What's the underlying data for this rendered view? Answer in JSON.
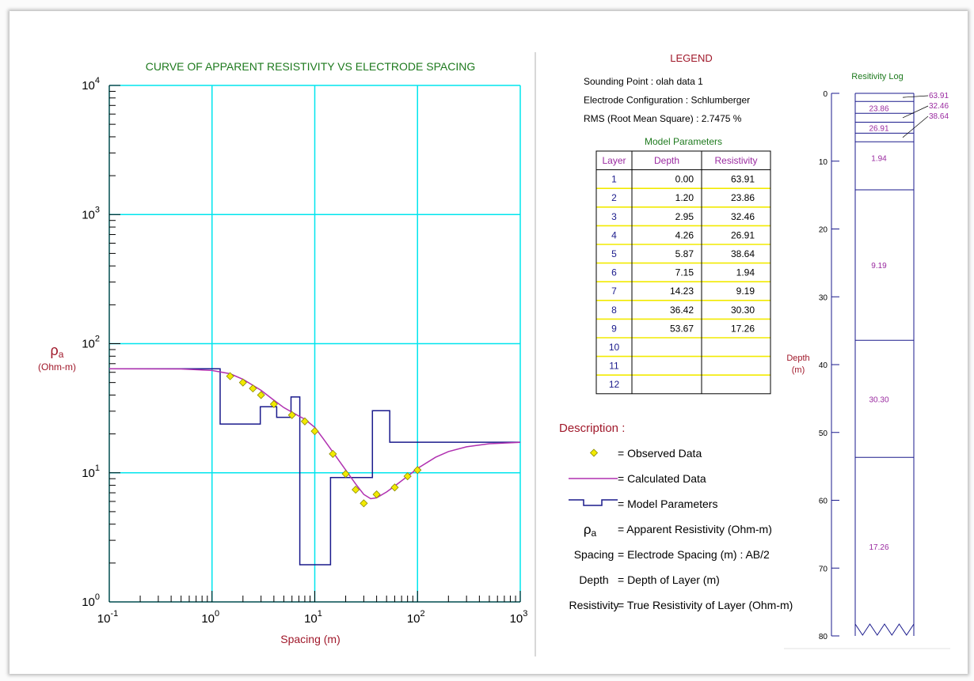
{
  "colors": {
    "grid": "#00e5ee",
    "axis": "#000000",
    "title": "#1e7a1e",
    "ylabel": "#a0182a",
    "xlabel": "#a0182a",
    "model": "#1a1a8c",
    "calc": "#b030b0",
    "observed": "#f2ea00",
    "observed_edge": "#8a8a00",
    "table_row": "#f2ea00",
    "table_text": "#1a1a8c",
    "table_header": "#9a2aa0",
    "legend_title": "#a0182a",
    "log_title": "#1e7a1e",
    "log_text": "#9a2aa0"
  },
  "chart_data": [
    {
      "type": "line",
      "title": "CURVE OF APPARENT RESISTIVITY VS ELECTRODE SPACING",
      "xlabel": "Spacing (m)",
      "ylabel_symbol": "ρ",
      "ylabel_sub": "a",
      "ylabel_unit": "(Ohm-m)",
      "xscale": "log",
      "yscale": "log",
      "xlim": [
        0.1,
        1000
      ],
      "ylim": [
        1,
        10000
      ],
      "grid": true,
      "x_ticks": [
        {
          "base": "10",
          "exp": "-1"
        },
        {
          "base": "10",
          "exp": "0"
        },
        {
          "base": "10",
          "exp": "1"
        },
        {
          "base": "10",
          "exp": "2"
        },
        {
          "base": "10",
          "exp": "3"
        }
      ],
      "y_ticks": [
        {
          "base": "10",
          "exp": "0"
        },
        {
          "base": "10",
          "exp": "1"
        },
        {
          "base": "10",
          "exp": "2"
        },
        {
          "base": "10",
          "exp": "3"
        },
        {
          "base": "10",
          "exp": "4"
        }
      ],
      "series": [
        {
          "name": "Observed Data",
          "kind": "scatter",
          "x": [
            1.5,
            2,
            2.5,
            3,
            4,
            6,
            8,
            10,
            15,
            20,
            25,
            30,
            40,
            60,
            80,
            100
          ],
          "y": [
            56,
            50,
            45,
            40,
            34,
            28,
            25,
            21,
            14,
            9.8,
            7.4,
            5.8,
            6.8,
            7.7,
            9.4,
            10.5
          ]
        },
        {
          "name": "Calculated Data",
          "kind": "line",
          "x": [
            0.1,
            0.5,
            1,
            1.5,
            2,
            3,
            4,
            5,
            6,
            7,
            8,
            10,
            12,
            15,
            20,
            25,
            30,
            35,
            40,
            50,
            60,
            80,
            100,
            150,
            200,
            300,
            500,
            1000
          ],
          "y": [
            63.9,
            63.7,
            62,
            58.5,
            53,
            43.5,
            36.5,
            32,
            29.5,
            27.5,
            26,
            22.5,
            18.5,
            14.5,
            10.5,
            8.2,
            6.8,
            6.3,
            6.4,
            7.1,
            7.9,
            9.4,
            10.8,
            13.2,
            14.6,
            15.9,
            16.8,
            17.2
          ]
        },
        {
          "name": "Model Parameters",
          "kind": "step",
          "resistivity": [
            63.91,
            23.86,
            32.46,
            26.91,
            38.64,
            1.94,
            9.19,
            30.3,
            17.26
          ],
          "depth_top": [
            0.0,
            1.2,
            2.95,
            4.26,
            5.87,
            7.15,
            14.23,
            36.42,
            53.67
          ],
          "x_end": 1000
        }
      ]
    },
    {
      "type": "bar",
      "title": "Resitivity Log",
      "ylabel": "Depth",
      "yunit": "(m)",
      "ylim": [
        0,
        80
      ],
      "y_ticks": [
        "0",
        "10",
        "20",
        "30",
        "40",
        "50",
        "60",
        "70",
        "80"
      ],
      "layer_labels": [
        "63.91",
        "23.86",
        "32.46",
        "26.91",
        "38.64",
        "1.94",
        "9.19",
        "30.30",
        "17.26"
      ]
    }
  ],
  "legend": {
    "title": "LEGEND",
    "lines": [
      {
        "label": "Sounding Point",
        "value": "olah data 1"
      },
      {
        "label": "Electrode Configuration",
        "value": "Schlumberger"
      },
      {
        "label": "RMS (Root Mean Square)",
        "value": "2.7475 %"
      }
    ]
  },
  "model_table": {
    "title": "Model Parameters",
    "headers": [
      "Layer",
      "Depth",
      "Resistivity"
    ],
    "rows": [
      [
        "1",
        "0.00",
        "63.91"
      ],
      [
        "2",
        "1.20",
        "23.86"
      ],
      [
        "3",
        "2.95",
        "32.46"
      ],
      [
        "4",
        "4.26",
        "26.91"
      ],
      [
        "5",
        "5.87",
        "38.64"
      ],
      [
        "6",
        "7.15",
        "1.94"
      ],
      [
        "7",
        "14.23",
        "9.19"
      ],
      [
        "8",
        "36.42",
        "30.30"
      ],
      [
        "9",
        "53.67",
        "17.26"
      ],
      [
        "10",
        "",
        ""
      ],
      [
        "11",
        "",
        ""
      ],
      [
        "12",
        "",
        ""
      ]
    ]
  },
  "description": {
    "title": "Description :",
    "items": [
      {
        "key": "",
        "text": "= Observed Data",
        "icon": "diamond-icon"
      },
      {
        "key": "",
        "text": "= Calculated Data",
        "icon": "line-icon"
      },
      {
        "key": "",
        "text": "= Model Parameters",
        "icon": "step-icon"
      },
      {
        "key": "ρ",
        "key_sub": "a",
        "text": "= Apparent Resistivity (Ohm-m)"
      },
      {
        "key": "Spacing",
        "text": "= Electrode Spacing (m)  :  AB/2"
      },
      {
        "key": "Depth",
        "text": "= Depth of Layer (m)"
      },
      {
        "key": "Resistivity",
        "text": "= True Resistivity of Layer (Ohm-m)"
      }
    ]
  }
}
